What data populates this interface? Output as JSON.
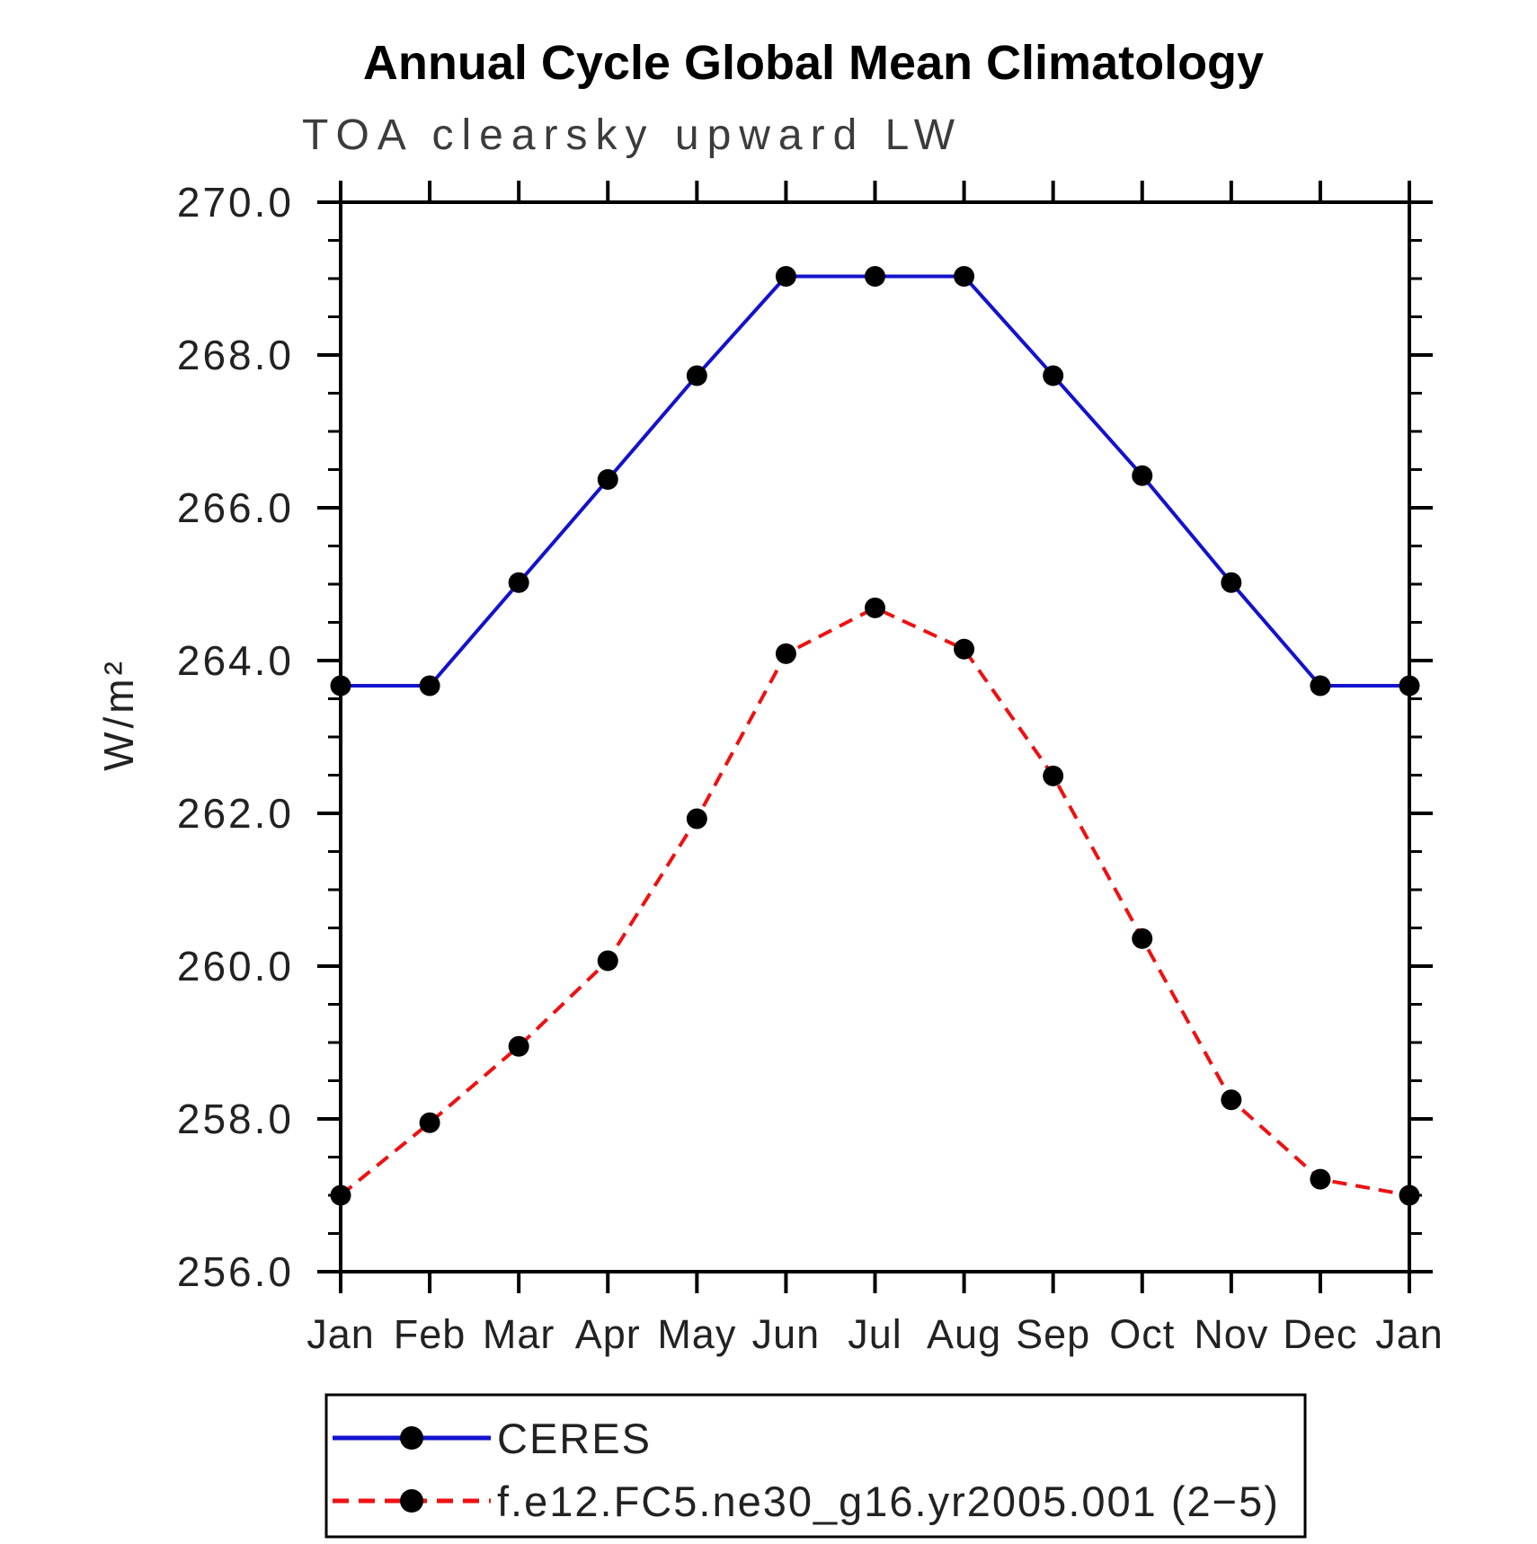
{
  "page": {
    "background": "#ffffff"
  },
  "chart_data": {
    "type": "line",
    "title": "Annual Cycle Global Mean Climatology",
    "subtitle": "TOA clearsky upward LW",
    "ylabel": "W/m²",
    "xlabel": "",
    "x_categories": [
      "Jan",
      "Feb",
      "Mar",
      "Apr",
      "May",
      "Jun",
      "Jul",
      "Aug",
      "Sep",
      "Oct",
      "Nov",
      "Dec",
      "Jan"
    ],
    "ylim": [
      256.0,
      270.0
    ],
    "ytick_step": 2.0,
    "ytick_minor_step": 0.5,
    "ytick_labels": [
      "256.0",
      "258.0",
      "260.0",
      "262.0",
      "264.0",
      "266.0",
      "268.0",
      "270.0"
    ],
    "grid": false,
    "legend_position": "bottom",
    "axis_color": "#000000",
    "marker_color": "#000000",
    "series": [
      {
        "name": "CERES",
        "color": "#1212cd",
        "line_style": "solid",
        "values": [
          263.67,
          263.67,
          265.02,
          266.37,
          267.73,
          269.03,
          269.03,
          269.03,
          267.73,
          266.42,
          265.02,
          263.67,
          263.67
        ]
      },
      {
        "name": "f.e12.FC5.ne30_g16.yr2005.001 (2−5)",
        "color": "#ee1111",
        "line_style": "dashed",
        "values": [
          257.0,
          257.95,
          258.95,
          260.07,
          261.93,
          264.09,
          264.69,
          264.15,
          262.49,
          260.36,
          258.25,
          257.21,
          257.0
        ]
      }
    ]
  }
}
